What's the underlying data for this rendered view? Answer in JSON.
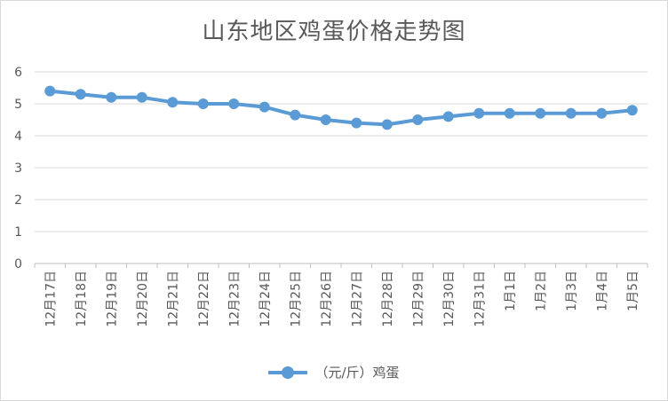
{
  "chart_data": {
    "type": "line",
    "title": "山东地区鸡蛋价格走势图",
    "categories": [
      "12月17日",
      "12月18日",
      "12月19日",
      "12月20日",
      "12月21日",
      "12月22日",
      "12月23日",
      "12月24日",
      "12月25日",
      "12月26日",
      "12月27日",
      "12月28日",
      "12月29日",
      "12月30日",
      "12月31日",
      "1月1日",
      "1月2日",
      "1月3日",
      "1月4日",
      "1月5日"
    ],
    "series": [
      {
        "name": "（元/斤）鸡蛋",
        "color": "#5b9bd5",
        "values": [
          5.4,
          5.3,
          5.2,
          5.2,
          5.05,
          5.0,
          5.0,
          4.9,
          4.65,
          4.5,
          4.4,
          4.35,
          4.5,
          4.6,
          4.7,
          4.7,
          4.7,
          4.7,
          4.7,
          4.8
        ]
      }
    ],
    "y_ticks": [
      "0",
      "1",
      "2",
      "3",
      "4",
      "5",
      "6"
    ],
    "ylim": [
      0,
      6
    ],
    "grid": true,
    "legend_position": "bottom"
  }
}
